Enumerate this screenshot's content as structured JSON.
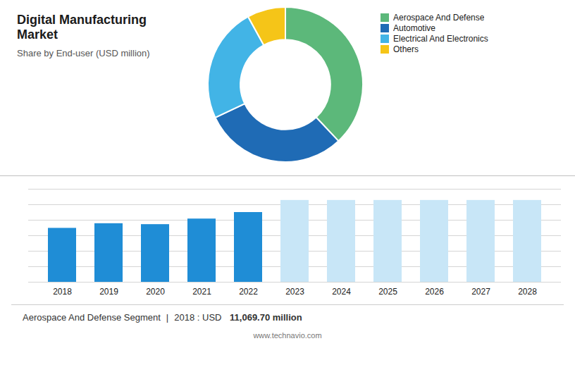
{
  "chart_data": [
    {
      "type": "pie",
      "title": "Digital Manufacturing Market",
      "subtitle": "Share by End-user (USD million)",
      "categories": [
        "Aerospace And Defense",
        "Automotive",
        "Electrical And Electronics",
        "Others"
      ],
      "values": [
        38,
        30,
        24,
        8
      ],
      "colors": [
        "#5cb87a",
        "#1f6bb5",
        "#42b4e6",
        "#f5c518"
      ],
      "legend": "right"
    },
    {
      "type": "bar",
      "categories": [
        "2018",
        "2019",
        "2020",
        "2021",
        "2022",
        "2023",
        "2024",
        "2025",
        "2026",
        "2027",
        "2028"
      ],
      "values": [
        0.58,
        0.63,
        0.62,
        0.68,
        0.75,
        0.88,
        0.88,
        0.88,
        0.88,
        0.88,
        0.88
      ],
      "colors": [
        "#1f8dd6",
        "#1f8dd6",
        "#1f8dd6",
        "#1f8dd6",
        "#1f8dd6",
        "#c8e6f7",
        "#c8e6f7",
        "#c8e6f7",
        "#c8e6f7",
        "#c8e6f7",
        "#c8e6f7"
      ],
      "ylim": [
        0,
        1.0
      ],
      "yticks": [
        0,
        0.16666666666666666,
        0.3333333333333333,
        0.5,
        0.6666666666666666,
        0.8333333333333334,
        1.0
      ],
      "grid": true,
      "tick_labels": "x",
      "annotations": [
        "Aerospace And Defense Segment",
        "|",
        "2018 : USD ",
        "11,069.70 million",
        "www.technavio.com"
      ]
    }
  ]
}
